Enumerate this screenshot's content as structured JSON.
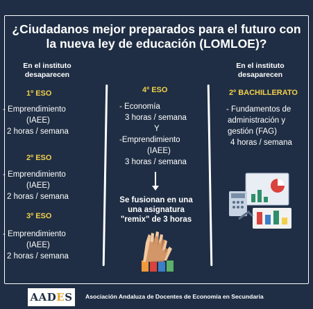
{
  "title_line1": "¿Ciudadanos mejor preparados para el futuro con",
  "title_line2": "la nueva ley de educación (LOMLOE)?",
  "left": {
    "header_line1": "En el instituto",
    "header_line2": "desaparecen",
    "blocks": [
      {
        "course": "1º ESO",
        "line1": "- Emprendimiento",
        "line2": "(IAEE)",
        "line3": "2 horas / semana"
      },
      {
        "course": "2º ESO",
        "line1": "- Emprendimiento",
        "line2": "(IAEE)",
        "line3": "2 horas / semana"
      },
      {
        "course": "3º ESO",
        "line1": "- Emprendimiento",
        "line2": "(IAEE)",
        "line3": "2 horas / semana"
      }
    ]
  },
  "center": {
    "course": "4º ESO",
    "line1": "- Economía",
    "line2": "3 horas / semana",
    "line3": "Y",
    "line4": "-Emprendimiento",
    "line5": "(IAEE)",
    "line6": "3 horas / semana",
    "merge_line1": "Se fusionan en una",
    "merge_line2": "una asignatura",
    "merge_line3": "\"remix\" de 3 horas"
  },
  "right": {
    "header_line1": "En el instituto",
    "header_line2": "desaparecen",
    "course": "2º BACHILLERATO",
    "line1": "- Fundamentos de",
    "line2": "administración y",
    "line3": "gestión (FAG)",
    "line4": "4 horas / semana"
  },
  "footer": {
    "logo_part1": "AAD",
    "logo_part2": "E",
    "logo_part3": "S",
    "text": "Asociación Andaluza de Docentes de Economía en Secundaria"
  },
  "colors": {
    "background": "#1f2e44",
    "accent": "#f3d04b",
    "text": "#ffffff"
  },
  "icons": {
    "illustration": "finance-illustration-icon",
    "hands": "raised-hands-icon"
  }
}
